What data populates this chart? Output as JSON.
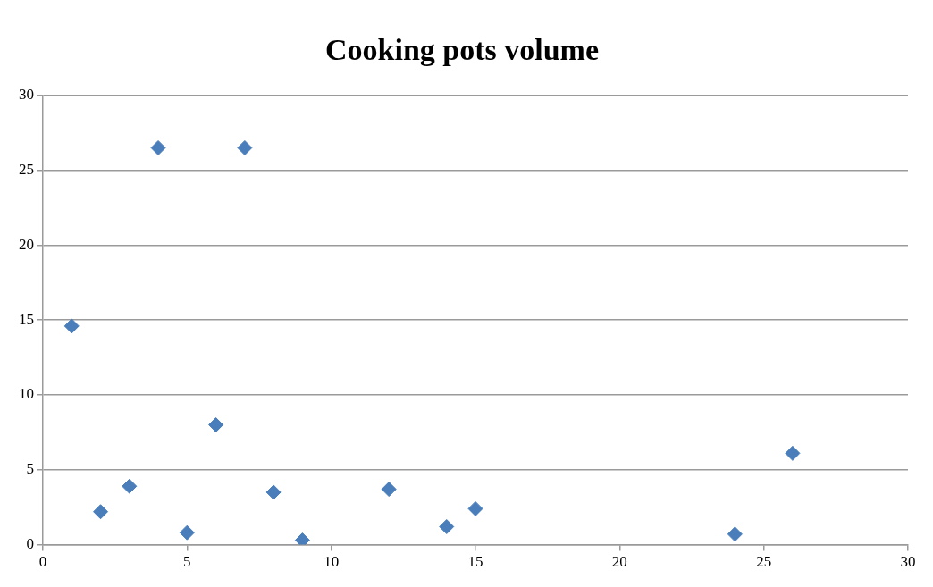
{
  "chart_data": {
    "type": "scatter",
    "title": "Cooking pots volume",
    "x": [
      1,
      2,
      3,
      4,
      5,
      6,
      7,
      8,
      9,
      12,
      14,
      15,
      24,
      26
    ],
    "values": [
      14.6,
      2.2,
      3.9,
      26.5,
      0.8,
      8.0,
      26.5,
      3.5,
      0.3,
      3.7,
      1.2,
      2.4,
      0.7,
      6.1
    ],
    "color": "#4a7ebb",
    "marker": "diamond",
    "xlim": [
      0,
      30
    ],
    "xticks": [
      0,
      5,
      10,
      15,
      20,
      25,
      30
    ],
    "ylim": [
      0,
      30
    ],
    "yticks": [
      0,
      5,
      10,
      15,
      20,
      25,
      30
    ],
    "grid": "y",
    "legend": false
  }
}
